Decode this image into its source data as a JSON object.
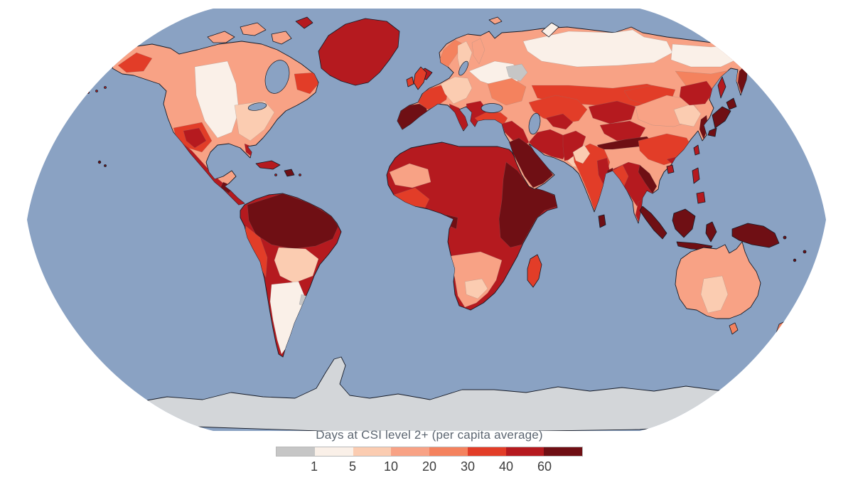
{
  "legend": {
    "title": "Days at CSI level 2+ (per capita average)",
    "ticks": [
      "1",
      "5",
      "10",
      "20",
      "30",
      "40",
      "60"
    ],
    "swatches": [
      {
        "range": "<1",
        "color": "#c6c6c6"
      },
      {
        "range": "1-5",
        "color": "#faf0e8"
      },
      {
        "range": "5-10",
        "color": "#fbccb1"
      },
      {
        "range": "10-20",
        "color": "#f8a285"
      },
      {
        "range": "20-30",
        "color": "#f4825e"
      },
      {
        "range": "30-40",
        "color": "#e23d28"
      },
      {
        "range": "40-60",
        "color": "#b51a1f"
      },
      {
        "range": "60+",
        "color": "#6f0f14"
      }
    ]
  },
  "map": {
    "projection": "robinson-world-choropleth",
    "background_color": "#ffffff",
    "ocean_color": "#8aa2c3",
    "coastline_color": "#151a26",
    "regions": {
      "ocean": {
        "name": "Ocean",
        "color": "#8aa2c3"
      },
      "antarctica": {
        "name": "Antarctica (no data)",
        "color": "#d3d6d9"
      },
      "greenland": {
        "name": "Greenland",
        "color": "#b51a1f"
      },
      "iceland": {
        "name": "Iceland",
        "color": "#b51a1f"
      },
      "canadian-arctic": {
        "name": "Canadian Arctic islands",
        "color": "#f8a285"
      },
      "arctic-island-dark": {
        "name": "Arctic island (high)",
        "color": "#b51a1f"
      },
      "north-america": {
        "name": "North America",
        "color": "#f8a285"
      },
      "canada-us-plains": {
        "name": "Canadian prairies / US plains",
        "color": "#faf0e8"
      },
      "us-east": {
        "name": "Eastern United States",
        "color": "#fbccb1"
      },
      "us-southwest": {
        "name": "US Southwest",
        "color": "#e23d28"
      },
      "us-southwest-core": {
        "name": "US Southwest core",
        "color": "#b51a1f"
      },
      "alaska-interior": {
        "name": "Alaska interior",
        "color": "#e23d28"
      },
      "quebec-labrador": {
        "name": "Quebec / Labrador",
        "color": "#e23d28"
      },
      "florida": {
        "name": "Florida",
        "color": "#b51a1f"
      },
      "mexico-central-america": {
        "name": "Mexico and Central America",
        "color": "#b51a1f"
      },
      "guatemala": {
        "name": "Guatemala / Chiapas",
        "color": "#6f0f14"
      },
      "cuba": {
        "name": "Cuba",
        "color": "#b51a1f"
      },
      "hispaniola": {
        "name": "Hispaniola",
        "color": "#6f0f14"
      },
      "caribbean": {
        "name": "Caribbean islands",
        "color": "#b51a1f"
      },
      "aleutian-islands": {
        "name": "Aleutian Islands",
        "color": "#b51a1f"
      },
      "hawaii": {
        "name": "Hawaii",
        "color": "#6f0f14"
      },
      "south-america": {
        "name": "South America",
        "color": "#b51a1f"
      },
      "amazon-north": {
        "name": "Venezuela / Colombia / N Brazil",
        "color": "#6f0f14"
      },
      "brazil-central": {
        "name": "Central Brazil",
        "color": "#fbccb1"
      },
      "argentina-chile": {
        "name": "Argentina / Chile",
        "color": "#faf0e8"
      },
      "uruguay": {
        "name": "Uruguay",
        "color": "#c6c6c6"
      },
      "peru-coast": {
        "name": "Peru",
        "color": "#e23d28"
      },
      "africa": {
        "name": "Africa",
        "color": "#b51a1f"
      },
      "horn-of-africa": {
        "name": "Horn of Africa / East Africa",
        "color": "#6f0f14"
      },
      "sahel-west": {
        "name": "Mauritania / Mali",
        "color": "#f8a285"
      },
      "west-africa-coast": {
        "name": "West African coast",
        "color": "#e23d28"
      },
      "gabon": {
        "name": "Gabon / Cameroon",
        "color": "#6f0f14"
      },
      "southern-africa": {
        "name": "Southern Africa",
        "color": "#f8a285"
      },
      "south-africa-interior": {
        "name": "South Africa interior",
        "color": "#fbccb1"
      },
      "madagascar": {
        "name": "Madagascar",
        "color": "#e23d28"
      },
      "eurasia": {
        "name": "Eurasia",
        "color": "#f8a285"
      },
      "spain-portugal": {
        "name": "Spain / Portugal",
        "color": "#6f0f14"
      },
      "france": {
        "name": "France",
        "color": "#e23d28"
      },
      "british-isles": {
        "name": "British Isles",
        "color": "#e23d28"
      },
      "central-europe": {
        "name": "Central Europe",
        "color": "#fbccb1"
      },
      "italy": {
        "name": "Italy",
        "color": "#b51a1f"
      },
      "balkans": {
        "name": "Balkans / Greece",
        "color": "#b51a1f"
      },
      "norway": {
        "name": "Norway",
        "color": "#f4825e"
      },
      "sweden": {
        "name": "Sweden",
        "color": "#fbccb1"
      },
      "finland": {
        "name": "Finland",
        "color": "#f8a285"
      },
      "ukraine-steppe": {
        "name": "Ukraine / S Russia",
        "color": "#f4825e"
      },
      "russia-west": {
        "name": "Western Russia",
        "color": "#faf0e8"
      },
      "moscow-region": {
        "name": "Moscow region",
        "color": "#c6c6c6"
      },
      "siberia-north": {
        "name": "Northern Siberia",
        "color": "#faf0e8"
      },
      "siberia-south": {
        "name": "Southern Siberia",
        "color": "#e23d28"
      },
      "russia-far-east": {
        "name": "Russian Far East",
        "color": "#f4825e"
      },
      "russia-pacific": {
        "name": "Pacific Russia coast",
        "color": "#e23d28"
      },
      "kamchatka": {
        "name": "Kamchatka",
        "color": "#6f0f14"
      },
      "chukotka-sliver": {
        "name": "Chukotka",
        "color": "#b51a1f"
      },
      "sakhalin": {
        "name": "Sakhalin",
        "color": "#b51a1f"
      },
      "right-edge-wrap": {
        "name": "Antimeridian wrap",
        "color": "#b51a1f"
      },
      "novaya-zemlya": {
        "name": "Novaya Zemlya",
        "color": "#faf0e8"
      },
      "svalbard": {
        "name": "Svalbard",
        "color": "#f8a285"
      },
      "turkey": {
        "name": "Turkey",
        "color": "#e23d28"
      },
      "levant-iraq": {
        "name": "Levant / Iraq",
        "color": "#b51a1f"
      },
      "arabia": {
        "name": "Arabian Peninsula",
        "color": "#6f0f14"
      },
      "iran": {
        "name": "Iran",
        "color": "#b51a1f"
      },
      "afghanistan": {
        "name": "Afghanistan",
        "color": "#b51a1f"
      },
      "pakistan": {
        "name": "Pakistan / NW India",
        "color": "#fbccb1"
      },
      "central-asia": {
        "name": "Central Asia",
        "color": "#e23d28"
      },
      "uzbekistan": {
        "name": "Uzbekistan / Turkmenistan",
        "color": "#b51a1f"
      },
      "mongolia": {
        "name": "Mongolia",
        "color": "#e23d28"
      },
      "xinjiang": {
        "name": "Xinjiang",
        "color": "#b51a1f"
      },
      "tibet": {
        "name": "Tibet",
        "color": "#b51a1f"
      },
      "himalaya": {
        "name": "Himalaya belt",
        "color": "#6f0f14"
      },
      "china-east": {
        "name": "Eastern China",
        "color": "#f8a285"
      },
      "china-coast": {
        "name": "China coastal provinces",
        "color": "#fbccb1"
      },
      "china-south": {
        "name": "Southern China",
        "color": "#e23d28"
      },
      "guangdong": {
        "name": "Guangdong coast",
        "color": "#b51a1f"
      },
      "china-northeast": {
        "name": "Northeast China",
        "color": "#b51a1f"
      },
      "korea": {
        "name": "Korea",
        "color": "#6f0f14"
      },
      "japan": {
        "name": "Japan",
        "color": "#6f0f14"
      },
      "india": {
        "name": "India",
        "color": "#e23d28"
      },
      "india-northwest": {
        "name": "Northwest India",
        "color": "#fbccb1"
      },
      "india-east": {
        "name": "Eastern India",
        "color": "#b51a1f"
      },
      "bangladesh": {
        "name": "Bangladesh",
        "color": "#6f0f14"
      },
      "sri-lanka": {
        "name": "Sri Lanka",
        "color": "#6f0f14"
      },
      "indochina": {
        "name": "Indochina",
        "color": "#b51a1f"
      },
      "myanmar": {
        "name": "Myanmar",
        "color": "#e23d28"
      },
      "vietnam": {
        "name": "Vietnam",
        "color": "#6f0f14"
      },
      "malay-peninsula": {
        "name": "Malay Peninsula",
        "color": "#b51a1f"
      },
      "sumatra": {
        "name": "Sumatra",
        "color": "#6f0f14"
      },
      "java": {
        "name": "Java",
        "color": "#6f0f14"
      },
      "borneo": {
        "name": "Borneo",
        "color": "#6f0f14"
      },
      "sulawesi": {
        "name": "Sulawesi",
        "color": "#6f0f14"
      },
      "philippines": {
        "name": "Philippines",
        "color": "#b51a1f"
      },
      "taiwan": {
        "name": "Taiwan",
        "color": "#b51a1f"
      },
      "hainan": {
        "name": "Hainan",
        "color": "#b51a1f"
      },
      "new-guinea": {
        "name": "New Guinea",
        "color": "#6f0f14"
      },
      "pacific-islands": {
        "name": "Pacific islands",
        "color": "#6f0f14"
      },
      "australia": {
        "name": "Australia",
        "color": "#f8a285"
      },
      "australia-south": {
        "name": "South-central Australia",
        "color": "#fbccb1"
      },
      "tasmania": {
        "name": "Tasmania",
        "color": "#f4825e"
      },
      "new-zealand": {
        "name": "New Zealand",
        "color": "#f4825e"
      }
    }
  }
}
